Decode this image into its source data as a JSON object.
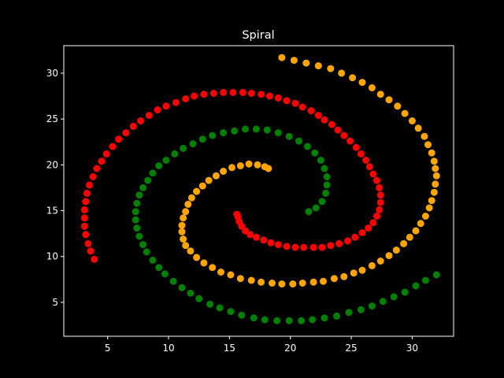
{
  "chart_data": {
    "type": "scatter",
    "title": "Spiral",
    "xlabel": "",
    "ylabel": "",
    "xlim": [
      1.4,
      33.4
    ],
    "ylim": [
      1.3,
      33.0
    ],
    "xticks": [
      5,
      10,
      15,
      20,
      25,
      30
    ],
    "yticks": [
      5,
      10,
      15,
      20,
      25,
      30
    ],
    "grid": false,
    "background": "#000000",
    "foreground": "#ffffff",
    "series": [
      {
        "color": "#ff0000",
        "points": [
          [
            3.9,
            9.7
          ],
          [
            3.6,
            10.6
          ],
          [
            3.4,
            11.4
          ],
          [
            3.2,
            12.4
          ],
          [
            3.1,
            13.3
          ],
          [
            3.1,
            14.2
          ],
          [
            3.1,
            15.1
          ],
          [
            3.2,
            16.0
          ],
          [
            3.3,
            16.9
          ],
          [
            3.5,
            17.8
          ],
          [
            3.8,
            18.7
          ],
          [
            4.1,
            19.6
          ],
          [
            4.5,
            20.4
          ],
          [
            4.9,
            21.2
          ],
          [
            5.4,
            22.0
          ],
          [
            5.9,
            22.8
          ],
          [
            6.5,
            23.5
          ],
          [
            7.1,
            24.2
          ],
          [
            7.7,
            24.8
          ],
          [
            8.4,
            25.4
          ],
          [
            9.1,
            26.0
          ],
          [
            9.8,
            26.4
          ],
          [
            10.6,
            26.8
          ],
          [
            11.4,
            27.2
          ],
          [
            12.1,
            27.5
          ],
          [
            12.9,
            27.7
          ],
          [
            13.7,
            27.8
          ],
          [
            14.5,
            27.9
          ],
          [
            15.3,
            27.9
          ],
          [
            16.1,
            27.9
          ],
          [
            16.8,
            27.8
          ],
          [
            17.6,
            27.7
          ],
          [
            18.3,
            27.5
          ],
          [
            19.0,
            27.3
          ],
          [
            19.7,
            27.0
          ],
          [
            20.4,
            26.7
          ],
          [
            21.0,
            26.3
          ],
          [
            21.7,
            25.9
          ],
          [
            22.3,
            25.4
          ],
          [
            22.8,
            24.9
          ],
          [
            23.4,
            24.4
          ],
          [
            23.9,
            23.8
          ],
          [
            24.4,
            23.2
          ],
          [
            24.9,
            22.6
          ],
          [
            25.4,
            21.9
          ],
          [
            25.8,
            21.2
          ],
          [
            26.2,
            20.5
          ],
          [
            26.5,
            19.8
          ],
          [
            26.8,
            19.0
          ],
          [
            27.1,
            18.3
          ],
          [
            27.3,
            17.5
          ],
          [
            27.4,
            16.7
          ],
          [
            27.4,
            15.9
          ],
          [
            27.3,
            15.1
          ],
          [
            27.1,
            14.4
          ],
          [
            26.8,
            13.7
          ],
          [
            26.4,
            13.1
          ],
          [
            25.9,
            12.6
          ],
          [
            25.3,
            12.1
          ],
          [
            24.7,
            11.7
          ],
          [
            24.0,
            11.4
          ],
          [
            23.3,
            11.2
          ],
          [
            22.6,
            11.0
          ],
          [
            21.9,
            11.0
          ],
          [
            21.1,
            11.0
          ],
          [
            20.4,
            11.0
          ],
          [
            19.7,
            11.1
          ],
          [
            19.0,
            11.3
          ],
          [
            18.4,
            11.5
          ],
          [
            17.8,
            11.8
          ],
          [
            17.2,
            12.1
          ],
          [
            16.7,
            12.4
          ],
          [
            16.3,
            12.8
          ],
          [
            16.0,
            13.3
          ],
          [
            15.8,
            13.8
          ],
          [
            15.7,
            14.3
          ],
          [
            15.6,
            14.6
          ]
        ]
      },
      {
        "color": "#ffa500",
        "points": [
          [
            19.3,
            31.7
          ],
          [
            20.3,
            31.4
          ],
          [
            21.3,
            31.1
          ],
          [
            22.3,
            30.8
          ],
          [
            23.3,
            30.5
          ],
          [
            24.2,
            30.0
          ],
          [
            25.1,
            29.5
          ],
          [
            25.9,
            29.0
          ],
          [
            26.7,
            28.4
          ],
          [
            27.4,
            27.7
          ],
          [
            28.1,
            27.1
          ],
          [
            28.8,
            26.4
          ],
          [
            29.4,
            25.6
          ],
          [
            30.0,
            24.8
          ],
          [
            30.5,
            24.0
          ],
          [
            31.0,
            23.1
          ],
          [
            31.3,
            22.2
          ],
          [
            31.6,
            21.3
          ],
          [
            31.8,
            20.4
          ],
          [
            31.9,
            19.6
          ],
          [
            32.0,
            18.8
          ],
          [
            31.9,
            17.9
          ],
          [
            31.8,
            17.0
          ],
          [
            31.6,
            16.1
          ],
          [
            31.4,
            15.3
          ],
          [
            31.1,
            14.4
          ],
          [
            30.7,
            13.6
          ],
          [
            30.3,
            12.8
          ],
          [
            29.8,
            12.1
          ],
          [
            29.3,
            11.4
          ],
          [
            28.7,
            10.7
          ],
          [
            28.1,
            10.1
          ],
          [
            27.4,
            9.5
          ],
          [
            26.7,
            9.0
          ],
          [
            25.9,
            8.5
          ],
          [
            25.2,
            8.2
          ],
          [
            24.4,
            7.8
          ],
          [
            23.6,
            7.6
          ],
          [
            22.7,
            7.3
          ],
          [
            21.9,
            7.2
          ],
          [
            21.0,
            7.1
          ],
          [
            20.2,
            7.0
          ],
          [
            19.3,
            7.0
          ],
          [
            18.5,
            7.1
          ],
          [
            17.6,
            7.2
          ],
          [
            16.8,
            7.4
          ],
          [
            15.9,
            7.6
          ],
          [
            15.1,
            8.0
          ],
          [
            14.3,
            8.3
          ],
          [
            13.6,
            8.8
          ],
          [
            12.9,
            9.3
          ],
          [
            12.3,
            9.9
          ],
          [
            11.8,
            10.6
          ],
          [
            11.4,
            11.2
          ],
          [
            11.2,
            11.9
          ],
          [
            11.1,
            12.7
          ],
          [
            11.1,
            13.4
          ],
          [
            11.2,
            14.2
          ],
          [
            11.4,
            14.9
          ],
          [
            11.6,
            15.7
          ],
          [
            11.9,
            16.4
          ],
          [
            12.3,
            17.1
          ],
          [
            12.8,
            17.7
          ],
          [
            13.3,
            18.3
          ],
          [
            13.9,
            18.8
          ],
          [
            14.5,
            19.3
          ],
          [
            15.2,
            19.7
          ],
          [
            15.9,
            19.9
          ],
          [
            16.6,
            20.1
          ],
          [
            17.3,
            20.0
          ],
          [
            17.9,
            19.8
          ],
          [
            18.2,
            19.6
          ]
        ]
      },
      {
        "color": "#008000",
        "points": [
          [
            32.0,
            8.0
          ],
          [
            31.1,
            7.4
          ],
          [
            30.3,
            6.8
          ],
          [
            29.4,
            6.1
          ],
          [
            28.5,
            5.6
          ],
          [
            27.6,
            5.1
          ],
          [
            26.7,
            4.6
          ],
          [
            25.8,
            4.2
          ],
          [
            24.8,
            3.9
          ],
          [
            23.8,
            3.5
          ],
          [
            22.8,
            3.3
          ],
          [
            21.8,
            3.1
          ],
          [
            20.9,
            3.0
          ],
          [
            19.9,
            3.0
          ],
          [
            18.9,
            3.0
          ],
          [
            17.9,
            3.1
          ],
          [
            17.0,
            3.3
          ],
          [
            16.0,
            3.6
          ],
          [
            15.1,
            4.0
          ],
          [
            14.2,
            4.4
          ],
          [
            13.4,
            4.8
          ],
          [
            12.5,
            5.4
          ],
          [
            11.8,
            6.0
          ],
          [
            11.1,
            6.6
          ],
          [
            10.4,
            7.3
          ],
          [
            9.7,
            8.1
          ],
          [
            9.2,
            8.8
          ],
          [
            8.7,
            9.6
          ],
          [
            8.2,
            10.5
          ],
          [
            7.9,
            11.3
          ],
          [
            7.6,
            12.2
          ],
          [
            7.4,
            13.1
          ],
          [
            7.3,
            14.0
          ],
          [
            7.3,
            14.9
          ],
          [
            7.4,
            15.8
          ],
          [
            7.6,
            16.7
          ],
          [
            7.9,
            17.5
          ],
          [
            8.3,
            18.3
          ],
          [
            8.7,
            19.1
          ],
          [
            9.2,
            19.9
          ],
          [
            9.8,
            20.5
          ],
          [
            10.5,
            21.2
          ],
          [
            11.2,
            21.8
          ],
          [
            12.0,
            22.3
          ],
          [
            12.8,
            22.8
          ],
          [
            13.6,
            23.2
          ],
          [
            14.5,
            23.5
          ],
          [
            15.4,
            23.7
          ],
          [
            16.3,
            23.9
          ],
          [
            17.2,
            23.9
          ],
          [
            18.1,
            23.8
          ],
          [
            19.0,
            23.5
          ],
          [
            19.9,
            23.1
          ],
          [
            20.7,
            22.6
          ],
          [
            21.4,
            22.0
          ],
          [
            22.0,
            21.3
          ],
          [
            22.5,
            20.5
          ],
          [
            22.8,
            19.6
          ],
          [
            23.0,
            18.7
          ],
          [
            23.0,
            17.8
          ],
          [
            22.9,
            16.9
          ],
          [
            22.6,
            16.0
          ],
          [
            22.1,
            15.3
          ],
          [
            21.5,
            14.9
          ]
        ]
      }
    ]
  }
}
